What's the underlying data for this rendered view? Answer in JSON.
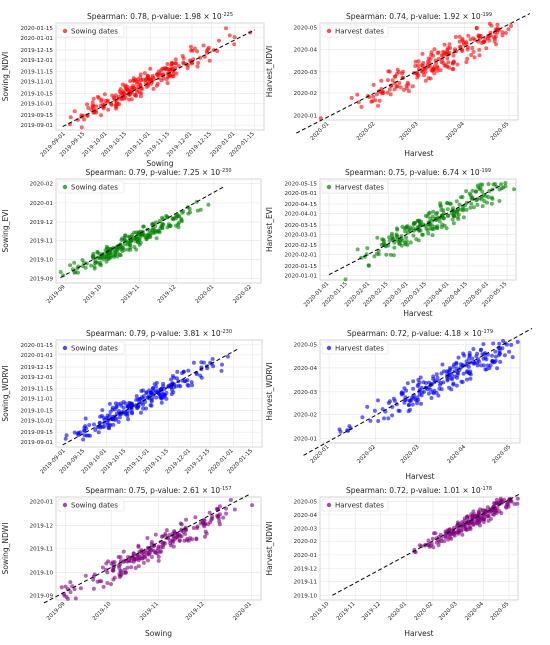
{
  "chart_data": [
    {
      "type": "scatter",
      "panel": "sowing-ndvi",
      "color": "#ff0000",
      "title_main": "Spearman: 0.78, p-value: 1.98 × 10",
      "title_exp": "-225",
      "xlabel": "Sowing",
      "ylabel": "Sowing_NDVI",
      "legend": "Sowing dates",
      "legend_position": "top-left",
      "x_ticks": [
        "2019-09-01",
        "2019-09-15",
        "2019-10-01",
        "2019-10-15",
        "2019-11-01",
        "2019-11-15",
        "2019-12-01",
        "2019-12-15",
        "2020-01-01",
        "2020-01-15"
      ],
      "y_ticks": [
        "2019-09-01",
        "2019-09-15",
        "2019-10-01",
        "2019-10-15",
        "2019-11-01",
        "2019-11-15",
        "2019-12-01",
        "2019-12-15",
        "2020-01-01",
        "2020-01-15"
      ],
      "trend": {
        "from": [
          "2019-08-30",
          "2019-08-30"
        ],
        "to": [
          "2020-01-15",
          "2020-01-12"
        ]
      },
      "cloud": {
        "x_range": [
          "2019-09-08",
          "2020-01-05"
        ],
        "center": [
          "2019-10-28",
          "2019-10-30"
        ],
        "spread_days": 12
      },
      "grid": true
    },
    {
      "type": "scatter",
      "panel": "harvest-ndvi",
      "color": "#ff0000",
      "title_main": "Spearman: 0.74, p-value: 1.92 × 10",
      "title_exp": "-199",
      "xlabel": "Harvest",
      "ylabel": "Harvest_NDVI",
      "legend": "Harvest dates",
      "legend_position": "top-left",
      "x_ticks": [
        "2020-01",
        "2020-02",
        "2020-03",
        "2020-04",
        "2020-05"
      ],
      "y_ticks": [
        "2020-01",
        "2020-02",
        "2020-03",
        "2020-04",
        "2020-05"
      ],
      "trend": {
        "from": [
          "2019-12-10",
          "2019-12-08"
        ],
        "to": [
          "2020-05-15",
          "2020-05-20"
        ]
      },
      "cloud": {
        "x_range": [
          "2019-12-25",
          "2020-05-10"
        ],
        "center": [
          "2020-03-20",
          "2020-03-20"
        ],
        "spread_days": 15
      },
      "grid": true
    },
    {
      "type": "scatter",
      "panel": "sowing-evi",
      "color": "#008000",
      "title_main": "Spearman: 0.79, p-value: 7.25 × 10",
      "title_exp": "-230",
      "xlabel": "",
      "ylabel": "Sowing_EVI",
      "legend": "Sowing dates",
      "legend_position": "top-left",
      "x_ticks": [
        "2019-09",
        "2019-10",
        "2019-11",
        "2019-12",
        "2020-01",
        "2020-02"
      ],
      "y_ticks": [
        "2019-09",
        "2019-10",
        "2019-11",
        "2019-12",
        "2020-01",
        "2020-02"
      ],
      "trend": {
        "from": [
          "2019-08-28",
          "2019-09-02"
        ],
        "to": [
          "2020-01-10",
          "2020-01-28"
        ]
      },
      "cloud": {
        "x_range": [
          "2019-09-01",
          "2019-12-20"
        ],
        "center": [
          "2019-10-25",
          "2019-10-30"
        ],
        "spread_days": 11
      },
      "grid": true
    },
    {
      "type": "scatter",
      "panel": "harvest-evi",
      "color": "#008000",
      "title_main": "Spearman: 0.75, p-value: 6.74 × 10",
      "title_exp": "-199",
      "xlabel": "Harvest",
      "ylabel": "Harvest_EVI",
      "legend": "Harvest dates",
      "legend_position": "top-left",
      "x_ticks": [
        "2020-01-01",
        "2020-01-15",
        "2020-02-01",
        "2020-02-15",
        "2020-03-01",
        "2020-03-15",
        "2020-04-01",
        "2020-04-15",
        "2020-05-01",
        "2020-05-15"
      ],
      "y_ticks": [
        "2020-01-01",
        "2020-01-15",
        "2020-02-01",
        "2020-02-15",
        "2020-03-01",
        "2020-03-15",
        "2020-04-01",
        "2020-04-15",
        "2020-05-01",
        "2020-05-15"
      ],
      "trend": {
        "from": [
          "2020-01-01",
          "2020-01-02"
        ],
        "to": [
          "2020-05-10",
          "2020-05-12"
        ]
      },
      "cloud": {
        "x_range": [
          "2020-01-05",
          "2020-05-08"
        ],
        "center": [
          "2020-03-20",
          "2020-03-20"
        ],
        "spread_days": 14
      },
      "grid": true
    },
    {
      "type": "scatter",
      "panel": "sowing-wdrvi",
      "color": "#0000ff",
      "title_main": "Spearman: 0.79, p-value: 3.81 × 10",
      "title_exp": "-230",
      "xlabel": "",
      "ylabel": "Sowing_WDRVI",
      "legend": "Sowing dates",
      "legend_position": "top-left",
      "x_ticks": [
        "2019-09-01",
        "2019-09-15",
        "2019-10-01",
        "2019-10-15",
        "2019-11-01",
        "2019-11-15",
        "2019-12-01",
        "2019-12-15",
        "2020-01-01",
        "2020-01-15"
      ],
      "y_ticks": [
        "2019-09-01",
        "2019-09-15",
        "2019-10-01",
        "2019-10-15",
        "2019-11-01",
        "2019-11-15",
        "2019-12-01",
        "2019-12-15",
        "2020-01-01",
        "2020-01-15"
      ],
      "trend": {
        "from": [
          "2019-08-30",
          "2019-08-28"
        ],
        "to": [
          "2020-01-05",
          "2020-01-10"
        ]
      },
      "cloud": {
        "x_range": [
          "2019-09-03",
          "2019-12-28"
        ],
        "center": [
          "2019-10-28",
          "2019-10-30"
        ],
        "spread_days": 12
      },
      "grid": true
    },
    {
      "type": "scatter",
      "panel": "harvest-wdrvi",
      "color": "#0000ff",
      "title_main": "Spearman: 0.72, p-value: 4.18 × 10",
      "title_exp": "-179",
      "xlabel": "Harvest",
      "ylabel": "Harvest_WDRVI",
      "legend": "Harvest dates",
      "legend_position": "top-left",
      "x_ticks": [
        "2020-01",
        "2020-02",
        "2020-03",
        "2020-04",
        "2020-05"
      ],
      "y_ticks": [
        "2020-01",
        "2020-02",
        "2020-03",
        "2020-04",
        "2020-05"
      ],
      "trend": {
        "from": [
          "2019-12-15",
          "2019-12-10"
        ],
        "to": [
          "2020-05-15",
          "2020-05-22"
        ]
      },
      "cloud": {
        "x_range": [
          "2019-12-28",
          "2020-05-12"
        ],
        "center": [
          "2020-03-22",
          "2020-03-22"
        ],
        "spread_days": 15
      },
      "grid": true
    },
    {
      "type": "scatter",
      "panel": "sowing-ndwi",
      "color": "#800080",
      "title_main": "Spearman: 0.75, p-value: 2.61 × 10",
      "title_exp": "-157",
      "xlabel": "Sowing",
      "ylabel": "Sowing_NDWI",
      "legend": "Sowing dates",
      "legend_position": "top-left",
      "x_ticks": [
        "2019-09",
        "2019-10",
        "2019-11",
        "2019-12",
        "2020-01"
      ],
      "y_ticks": [
        "2019-09",
        "2019-10",
        "2019-11",
        "2019-12",
        "2020-01"
      ],
      "trend": {
        "from": [
          "2019-08-18",
          "2019-08-22"
        ],
        "to": [
          "2019-12-30",
          "2020-01-10"
        ]
      },
      "cloud": {
        "x_range": [
          "2019-08-25",
          "2019-12-28"
        ],
        "center": [
          "2019-10-28",
          "2019-10-30"
        ],
        "spread_days": 12
      },
      "grid": true
    },
    {
      "type": "scatter",
      "panel": "harvest-ndwi",
      "color": "#800080",
      "title_main": "Spearman: 0.72, p-value: 1.01 × 10",
      "title_exp": "-178",
      "xlabel": "Harvest",
      "ylabel": "Harvest_NDWI",
      "legend": "Harvest dates",
      "legend_position": "top-left",
      "x_ticks": [
        "2019-10",
        "2019-11",
        "2019-12",
        "2020-01",
        "2020-02",
        "2020-03",
        "2020-04",
        "2020-05"
      ],
      "y_ticks": [
        "2019-10",
        "2019-11",
        "2019-12",
        "2020-01",
        "2020-02",
        "2020-03",
        "2020-04",
        "2020-05"
      ],
      "trend": {
        "from": [
          "2019-10-05",
          "2019-10-01"
        ],
        "to": [
          "2020-05-15",
          "2020-05-20"
        ]
      },
      "cloud": {
        "x_range": [
          "2019-12-20",
          "2020-05-10"
        ],
        "center": [
          "2020-03-22",
          "2020-03-22"
        ],
        "spread_days": 14
      },
      "grid": true
    }
  ]
}
